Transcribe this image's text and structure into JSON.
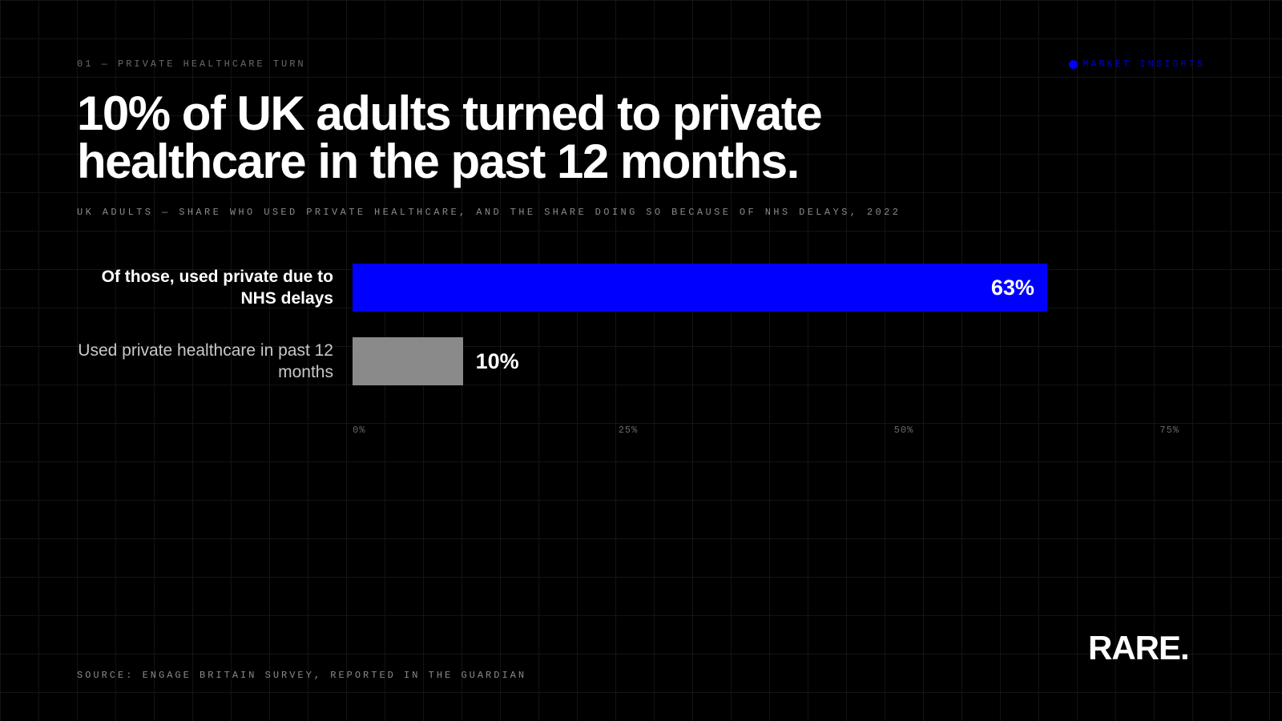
{
  "eyebrow": "01 — PRIVATE HEALTHCARE TURN",
  "tag": "MARKET INSIGHTS",
  "source": "SOURCE: ENGAGE BRITAIN SURVEY, REPORTED IN THE GUARDIAN",
  "logo": "RARE.",
  "chart_data": {
    "type": "bar",
    "orientation": "horizontal",
    "title": "10% of UK adults turned to private healthcare in the past 12 months.",
    "subtitle": "UK ADULTS — SHARE WHO USED PRIVATE HEALTHCARE, AND THE SHARE DOING SO BECAUSE OF NHS DELAYS, 2022",
    "categories": [
      "Of those, used private due to NHS delays",
      "Used private healthcare in past 12 months"
    ],
    "values": [
      63,
      10
    ],
    "value_labels": [
      "63%",
      "10%"
    ],
    "colors": [
      "#0000ff",
      "#8a8a8a"
    ],
    "xlim": [
      0,
      75
    ],
    "xticks": [
      {
        "value": 0,
        "label": "0%"
      },
      {
        "value": 25,
        "label": "25%"
      },
      {
        "value": 50,
        "label": "50%"
      },
      {
        "value": 75,
        "label": "75%"
      }
    ],
    "grid": false
  }
}
